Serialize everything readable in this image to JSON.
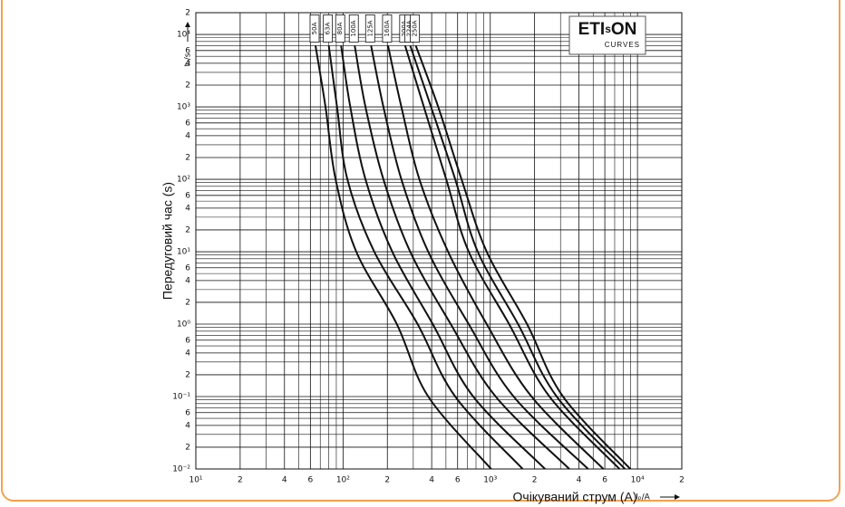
{
  "chart_data": {
    "type": "line",
    "x_label": "Очікуваний струм (A)",
    "y_label": "Передуговий час (s)",
    "x_unit": "Iₚ/A",
    "y_unit": "tᵥ/s",
    "logo": {
      "parts": [
        "ETI",
        "s",
        "ON"
      ],
      "sub": "CURVES",
      "color": "#a3156e"
    },
    "xlog": true,
    "ylog": true,
    "grid": true,
    "minor_grid": true,
    "xlim": [
      10,
      20000
    ],
    "ylim": [
      0.01,
      20000
    ],
    "xticks": [
      {
        "value": 10,
        "label": "10¹"
      },
      {
        "value": 20,
        "label": "2"
      },
      {
        "value": 40,
        "label": "4"
      },
      {
        "value": 60,
        "label": "6"
      },
      {
        "value": 100,
        "label": "10²"
      },
      {
        "value": 200,
        "label": "2"
      },
      {
        "value": 400,
        "label": "4"
      },
      {
        "value": 600,
        "label": "6"
      },
      {
        "value": 1000,
        "label": "10³"
      },
      {
        "value": 2000,
        "label": "2"
      },
      {
        "value": 4000,
        "label": "4"
      },
      {
        "value": 6000,
        "label": "6"
      },
      {
        "value": 10000,
        "label": "10⁴"
      },
      {
        "value": 20000,
        "label": "2"
      }
    ],
    "yticks": [
      {
        "value": 0.01,
        "label": "10⁻²"
      },
      {
        "value": 0.02,
        "label": "2"
      },
      {
        "value": 0.04,
        "label": "4"
      },
      {
        "value": 0.06,
        "label": "6"
      },
      {
        "value": 0.1,
        "label": "10⁻¹"
      },
      {
        "value": 0.2,
        "label": "2"
      },
      {
        "value": 0.4,
        "label": "4"
      },
      {
        "value": 0.6,
        "label": "6"
      },
      {
        "value": 1,
        "label": "10⁰"
      },
      2,
      4,
      6,
      {
        "value": 10,
        "label": "10¹"
      },
      {
        "value": 20,
        "label": "2"
      },
      {
        "value": 40,
        "label": "4"
      },
      {
        "value": 60,
        "label": "6"
      },
      {
        "value": 100,
        "label": "10²"
      },
      {
        "value": 200,
        "label": "2"
      },
      {
        "value": 400,
        "label": "4"
      },
      {
        "value": 600,
        "label": "6"
      },
      {
        "value": 1000,
        "label": "10³"
      },
      {
        "value": 2000,
        "label": "2"
      },
      {
        "value": 4000,
        "label": "4"
      },
      {
        "value": 6000,
        "label": "6"
      },
      {
        "value": 10000,
        "label": "10⁴"
      },
      {
        "value": 20000,
        "label": "2"
      }
    ],
    "series": [
      {
        "name": "50A",
        "color": "#111111",
        "x": [
          65,
          76,
          89,
          123,
          232,
          379,
          1014
        ],
        "values": [
          7000,
          1000,
          100,
          10,
          1,
          0.1,
          0.01
        ]
      },
      {
        "name": "63A",
        "color": "#111111",
        "x": [
          80,
          91,
          107,
          163,
          321,
          578,
          1660
        ],
        "values": [
          7000,
          1000,
          100,
          10,
          1,
          0.1,
          0.01
        ]
      },
      {
        "name": "80A",
        "color": "#111111",
        "x": [
          97,
          112,
          142,
          216,
          407,
          766,
          2355
        ],
        "values": [
          7000,
          1000,
          100,
          10,
          1,
          0.1,
          0.01
        ]
      },
      {
        "name": "100A",
        "color": "#111111",
        "x": [
          120,
          142,
          188,
          286,
          539,
          1088,
          3443
        ],
        "values": [
          7000,
          1000,
          100,
          10,
          1,
          0.1,
          0.01
        ]
      },
      {
        "name": "125A",
        "color": "#111111",
        "x": [
          155,
          188,
          249,
          379,
          714,
          1441,
          4620
        ],
        "values": [
          7000,
          1000,
          100,
          10,
          1,
          0.1,
          0.01
        ]
      },
      {
        "name": "160A",
        "color": "#111111",
        "x": [
          202,
          249,
          330,
          517,
          946,
          1906,
          5865
        ],
        "values": [
          7000,
          1000,
          100,
          10,
          1,
          0.1,
          0.01
        ]
      },
      {
        "name": "200A",
        "color": "#111111",
        "x": [
          264,
          354,
          502,
          714,
          1343,
          2525,
          7551
        ],
        "values": [
          7000,
          1000,
          100,
          10,
          1,
          0.1,
          0.01
        ]
      },
      {
        "name": "224A",
        "color": "#111111",
        "x": [
          286,
          396,
          578,
          822,
          1545,
          2826,
          8222
        ],
        "values": [
          7000,
          1000,
          100,
          10,
          1,
          0.1,
          0.01
        ]
      },
      {
        "name": "250A",
        "color": "#111111",
        "x": [
          312,
          443,
          638,
          946,
          1778,
          3119,
          8940
        ],
        "values": [
          7000,
          1000,
          100,
          10,
          1,
          0.1,
          0.01
        ]
      }
    ]
  }
}
